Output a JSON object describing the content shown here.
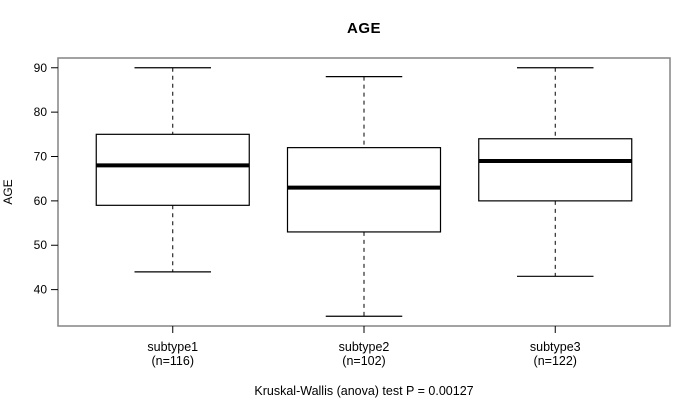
{
  "chart_data": {
    "type": "boxplot",
    "title": "AGE",
    "ylabel": "AGE",
    "xlabel": "",
    "ylim": [
      31.8,
      92.2
    ],
    "yticks": [
      40,
      50,
      60,
      70,
      80,
      90
    ],
    "grid": false,
    "legend": "none",
    "categories": [
      "subtype1",
      "subtype2",
      "subtype3"
    ],
    "category_sublabels": [
      "(n=116)",
      "(n=102)",
      "(n=122)"
    ],
    "series": [
      {
        "name": "subtype1",
        "n": 116,
        "lower_whisker": 44,
        "q1": 59,
        "median": 68,
        "q3": 75,
        "upper_whisker": 90
      },
      {
        "name": "subtype2",
        "n": 102,
        "lower_whisker": 34,
        "q1": 53,
        "median": 63,
        "q3": 72,
        "upper_whisker": 88
      },
      {
        "name": "subtype3",
        "n": 122,
        "lower_whisker": 43,
        "q1": 60,
        "median": 69,
        "q3": 74,
        "upper_whisker": 90
      }
    ],
    "annotation": "Kruskal-Wallis (anova) test P = 0.00127",
    "colors": {
      "frame": "#848484",
      "box_stroke": "#000000",
      "box_fill": "#ffffff",
      "median": "#000000",
      "whisker": "#000000",
      "text": "#000000",
      "background": "#ffffff"
    }
  }
}
